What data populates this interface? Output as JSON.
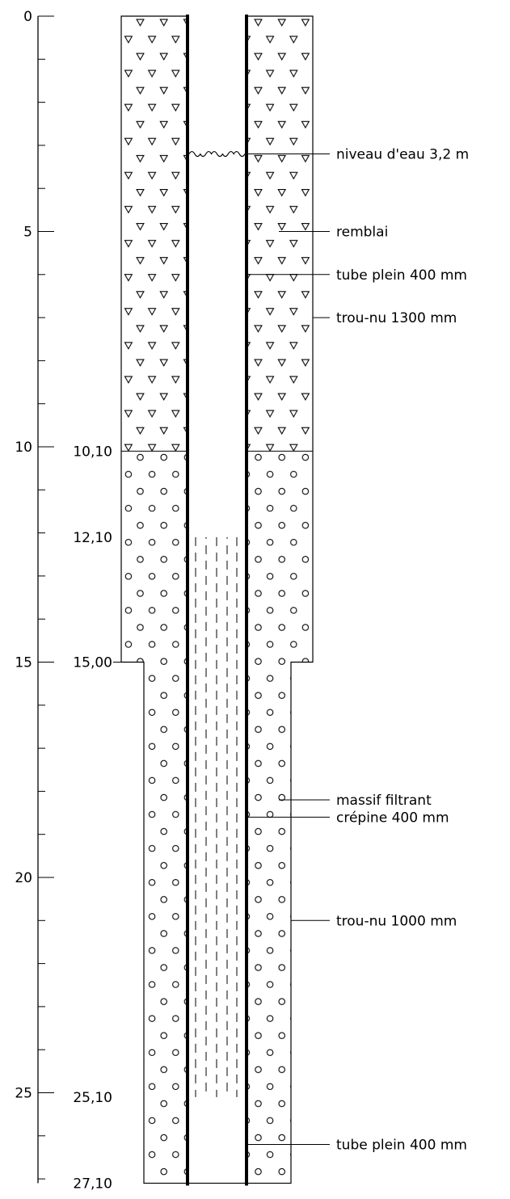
{
  "axis": {
    "min": 0,
    "max": 27.1,
    "major_ticks": [
      0,
      5,
      10,
      15,
      20,
      25
    ],
    "major_labels": [
      "0",
      "5",
      "10",
      "15",
      "20",
      "25"
    ],
    "minor_step": 1
  },
  "depth_markers": [
    {
      "depth": 10.1,
      "label": "10,10"
    },
    {
      "depth": 12.1,
      "label": "12,10"
    },
    {
      "depth": 15.0,
      "label": "15,00"
    },
    {
      "depth": 25.1,
      "label": "25,10"
    },
    {
      "depth": 27.1,
      "label": "27,10"
    }
  ],
  "layers": [
    {
      "name": "remblai",
      "top": 0,
      "bottom": 10.1,
      "pattern": "triangles"
    },
    {
      "name": "massif filtrant",
      "top": 10.1,
      "bottom": 27.1,
      "pattern": "circles"
    }
  ],
  "borehole": [
    {
      "top": 0,
      "bottom": 15.0,
      "diameter_mm": 1300
    },
    {
      "top": 15.0,
      "bottom": 27.1,
      "diameter_mm": 1000
    }
  ],
  "screen_interval": {
    "top": 12.1,
    "bottom": 25.1
  },
  "water_level": 3.2,
  "annotations": [
    {
      "depth": 3.2,
      "text": "niveau d'eau 3,2 m",
      "target": "water"
    },
    {
      "depth": 5.0,
      "text": "remblai",
      "target": "fill"
    },
    {
      "depth": 6.0,
      "text": "tube plein 400 mm",
      "target": "casing"
    },
    {
      "depth": 7.0,
      "text": "trou-nu 1300 mm",
      "target": "hole"
    },
    {
      "depth": 18.2,
      "text": "massif filtrant",
      "target": "fill"
    },
    {
      "depth": 18.6,
      "text": "crépine 400 mm",
      "target": "casing"
    },
    {
      "depth": 21.0,
      "text": "trou-nu 1000 mm",
      "target": "hole"
    },
    {
      "depth": 26.2,
      "text": "tube plein 400 mm",
      "target": "casing"
    }
  ]
}
